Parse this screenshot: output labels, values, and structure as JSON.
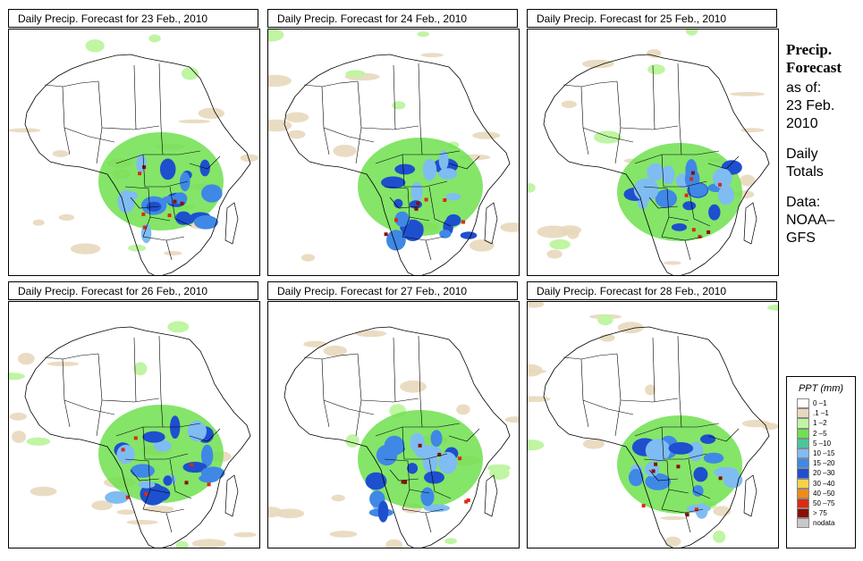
{
  "panels": [
    {
      "title": "Daily Precip. Forecast for  23 Feb., 2010"
    },
    {
      "title": "Daily Precip. Forecast for  24 Feb., 2010"
    },
    {
      "title": "Daily Precip. Forecast for  25 Feb., 2010"
    },
    {
      "title": "Daily Precip. Forecast for  26 Feb., 2010"
    },
    {
      "title": "Daily Precip. Forecast for  27 Feb., 2010"
    },
    {
      "title": "Daily Precip. Forecast for  28 Feb., 2010"
    }
  ],
  "side": {
    "heading1": "Precip.",
    "heading2": "Forecast",
    "asof1": "as of:",
    "asof2": "23 Feb.",
    "asof3": "2010",
    "daily1": "Daily",
    "daily2": "Totals",
    "data1": "Data:",
    "data2": "NOAA–",
    "data3": "GFS"
  },
  "legend": {
    "title": "PPT (mm)",
    "items": [
      {
        "label": "0 –1",
        "color": "#ffffff"
      },
      {
        "label": ".1 –1",
        "color": "#e8d8bc"
      },
      {
        "label": "1 –2",
        "color": "#bff5a3"
      },
      {
        "label": "2 –5",
        "color": "#6fe04f"
      },
      {
        "label": "5 –10",
        "color": "#47c89a"
      },
      {
        "label": "10 –15",
        "color": "#7fbcf2"
      },
      {
        "label": "15 –20",
        "color": "#3f88e6"
      },
      {
        "label": "20 –30",
        "color": "#1e4fce"
      },
      {
        "label": "30 –40",
        "color": "#f5d24a"
      },
      {
        "label": "40 –50",
        "color": "#f08a1c"
      },
      {
        "label": "50 –75",
        "color": "#dc2a0f"
      },
      {
        "label": "> 75",
        "color": "#8a0e04"
      },
      {
        "label": "nodata",
        "color": "#c8c8c8"
      }
    ]
  }
}
